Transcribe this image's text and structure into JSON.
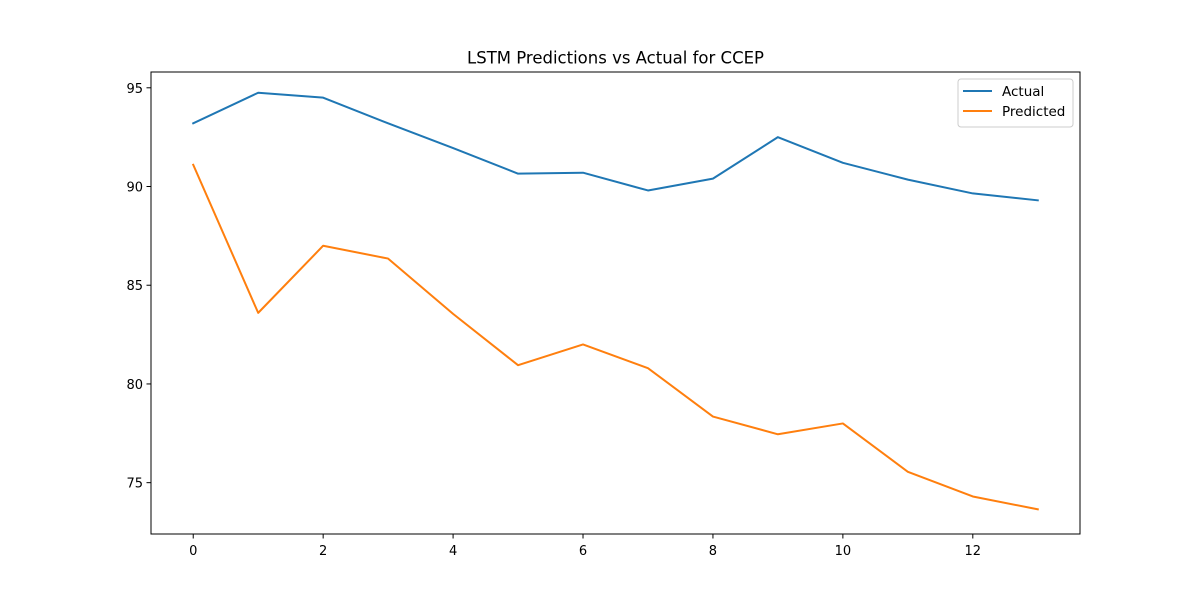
{
  "chart_data": {
    "type": "line",
    "title": "LSTM Predictions vs Actual for CCEP",
    "xlabel": "",
    "ylabel": "",
    "x": [
      0,
      1,
      2,
      3,
      4,
      5,
      6,
      7,
      8,
      9,
      10,
      11,
      12,
      13
    ],
    "series": [
      {
        "name": "Actual",
        "color": "#1f77b4",
        "values": [
          93.2,
          94.75,
          94.5,
          93.2,
          91.95,
          90.65,
          90.7,
          89.8,
          90.4,
          92.5,
          91.2,
          90.35,
          89.65,
          89.3
        ]
      },
      {
        "name": "Predicted",
        "color": "#ff7f0e",
        "values": [
          91.1,
          83.6,
          87.0,
          86.35,
          83.55,
          80.95,
          82.0,
          80.8,
          78.35,
          77.45,
          78.0,
          75.55,
          74.3,
          73.65
        ]
      }
    ],
    "xlim": [
      -0.65,
      13.65
    ],
    "ylim": [
      72.4,
      95.8
    ],
    "x_ticks": [
      0,
      2,
      4,
      6,
      8,
      10,
      12
    ],
    "y_ticks": [
      75,
      80,
      85,
      90,
      95
    ],
    "grid": false,
    "legend_position": "upper right"
  }
}
